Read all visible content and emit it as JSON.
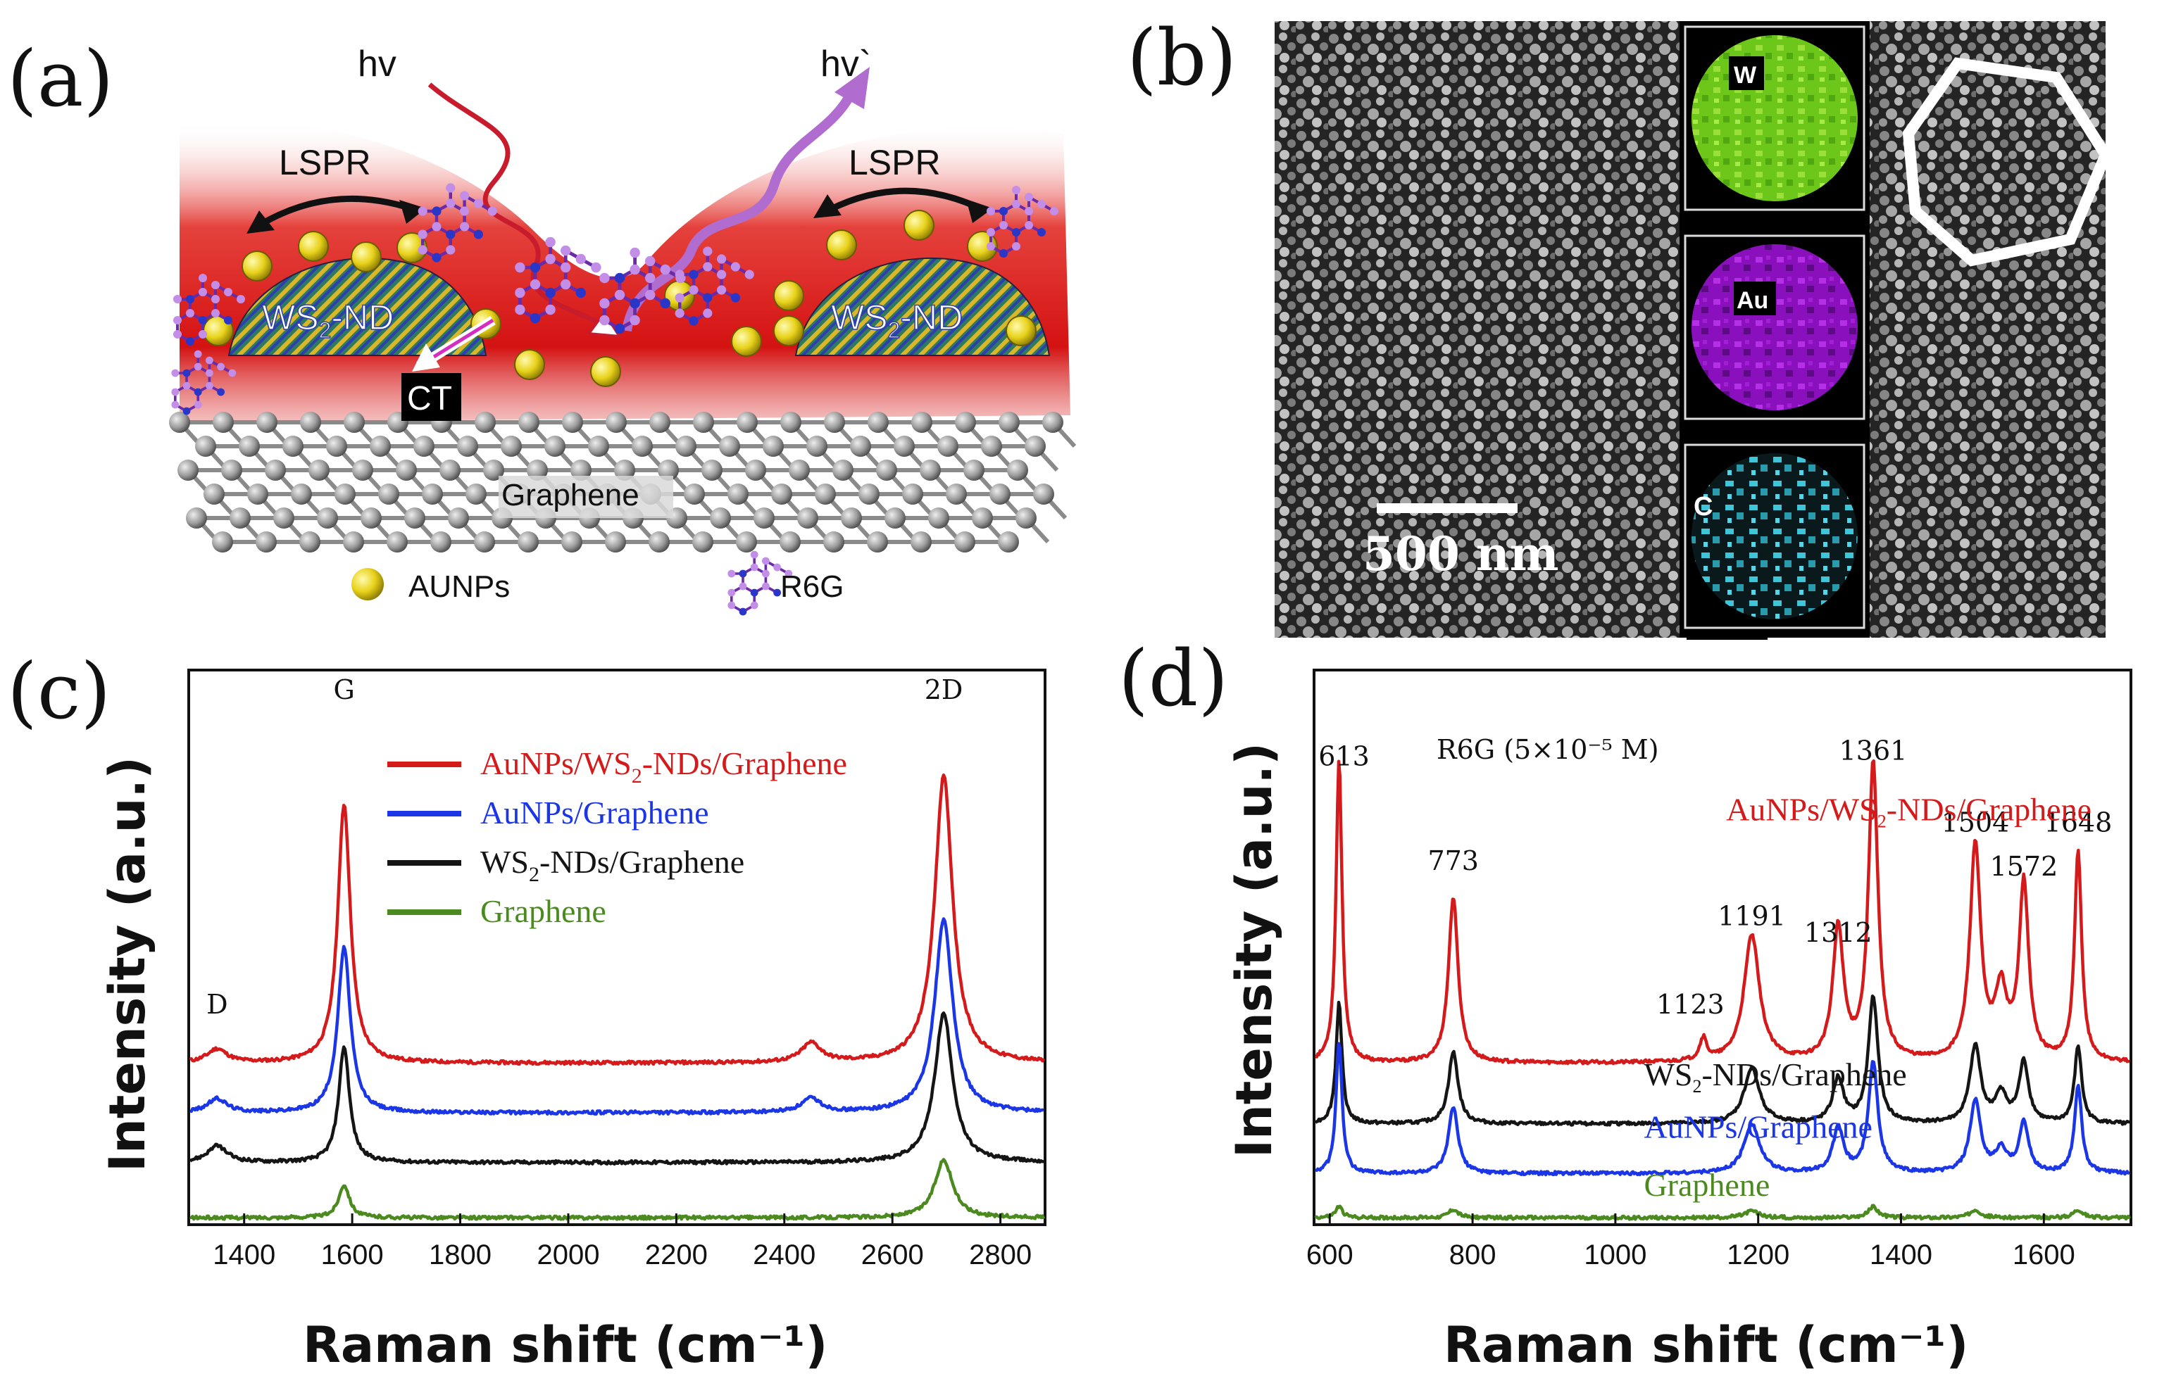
{
  "panels": {
    "a": {
      "label": "(a)",
      "hv_in": "hv",
      "hv_out": "hv`",
      "lspr": "LSPR",
      "nd": "WS",
      "nd_sub": "2",
      "nd_suffix": "-ND",
      "ct": "CT",
      "graphene": "Graphene",
      "legend_np": "AUNPs",
      "legend_dye": "R6G"
    },
    "b": {
      "label": "(b)",
      "scale_bar": "500 nm",
      "map_w": "W",
      "map_au": "Au",
      "map_c": "C"
    },
    "c": {
      "label": "(c)"
    },
    "d": {
      "label": "(d)"
    }
  },
  "colors": {
    "red": "#d41a1a",
    "blue": "#1b36e6",
    "black": "#151515",
    "green": "#4b8a1f",
    "lspr_red": "#dd1414",
    "w_green": "#84d81e",
    "au_purple": "#9a15c9",
    "c_cyan": "#3fc4d8",
    "gold": "#e8d21a"
  },
  "chart_data": [
    {
      "type": "line",
      "panel": "c",
      "xlabel": "Raman shift (cm⁻¹)",
      "ylabel": "Intensity (a.u.)",
      "xlim": [
        1300,
        2880
      ],
      "x_ticks": [
        "1400",
        "1600",
        "1800",
        "2000",
        "2200",
        "2400",
        "2600",
        "2800"
      ],
      "x_tick_values": [
        1400,
        1600,
        1800,
        2000,
        2200,
        2400,
        2600,
        2800
      ],
      "ylim": [
        0,
        1.0
      ],
      "peak_labels": [
        {
          "text": "D",
          "x": 1350,
          "y": 0.38
        },
        {
          "text": "G",
          "x": 1585,
          "y": 0.95
        },
        {
          "text": "2D",
          "x": 2695,
          "y": 0.95
        }
      ],
      "legend": [
        {
          "name": "AuNPs/WS",
          "sub": "2",
          "suffix": "-NDs/Graphene",
          "color": "#d41a1a"
        },
        {
          "name": "AuNPs/Graphene",
          "sub": "",
          "suffix": "",
          "color": "#1b36e6"
        },
        {
          "name": "WS",
          "sub": "2",
          "suffix": "-NDs/Graphene",
          "color": "#151515"
        },
        {
          "name": " Graphene",
          "sub": "",
          "suffix": "",
          "color": "#4b8a1f"
        }
      ],
      "series": [
        {
          "name": "AuNPs/WS2-NDs/Graphene",
          "color": "#d41a1a",
          "baseline": 0.29,
          "peaks": [
            [
              1350,
              0.025,
              22
            ],
            [
              1585,
              0.47,
              14
            ],
            [
              2450,
              0.035,
              22
            ],
            [
              2695,
              0.52,
              20
            ]
          ]
        },
        {
          "name": "AuNPs/Graphene",
          "color": "#1b36e6",
          "baseline": 0.2,
          "peaks": [
            [
              1350,
              0.025,
              22
            ],
            [
              1585,
              0.3,
              14
            ],
            [
              2450,
              0.025,
              22
            ],
            [
              2695,
              0.35,
              20
            ]
          ]
        },
        {
          "name": "WS2-NDs/Graphene",
          "color": "#151515",
          "baseline": 0.11,
          "peaks": [
            [
              1350,
              0.03,
              22
            ],
            [
              1585,
              0.21,
              12
            ],
            [
              2695,
              0.27,
              20
            ]
          ]
        },
        {
          "name": "Graphene",
          "color": "#4b8a1f",
          "baseline": 0.01,
          "peaks": [
            [
              1585,
              0.06,
              12
            ],
            [
              2695,
              0.105,
              20
            ]
          ]
        }
      ]
    },
    {
      "type": "line",
      "panel": "d",
      "xlabel": "Raman shift (cm⁻¹)",
      "ylabel": "Intensity (a.u.)",
      "xlim": [
        580,
        1720
      ],
      "x_ticks": [
        "600",
        "800",
        "1000",
        "1200",
        "1400",
        "1600"
      ],
      "x_tick_values": [
        600,
        800,
        1000,
        1200,
        1400,
        1600
      ],
      "ylim": [
        0,
        1.0
      ],
      "annotation": "R6G (5×10⁻⁵ M)",
      "peak_labels": [
        {
          "text": "613",
          "x": 620,
          "y": 0.83
        },
        {
          "text": "773",
          "x": 773,
          "y": 0.64
        },
        {
          "text": "1123",
          "x": 1105,
          "y": 0.38
        },
        {
          "text": "1191",
          "x": 1191,
          "y": 0.54
        },
        {
          "text": "1312",
          "x": 1312,
          "y": 0.51
        },
        {
          "text": "1361",
          "x": 1361,
          "y": 0.84
        },
        {
          "text": "1504",
          "x": 1504,
          "y": 0.71
        },
        {
          "text": "1572",
          "x": 1572,
          "y": 0.63
        },
        {
          "text": "1648",
          "x": 1648,
          "y": 0.71
        }
      ],
      "series_labels": [
        {
          "name": "AuNPs/WS",
          "sub": "2",
          "suffix": "-NDs/Graphene",
          "color": "#d41a1a",
          "x": 1155,
          "y": 0.73
        },
        {
          "name": "WS",
          "sub": "2",
          "suffix": "-NDs/Graphene",
          "color": "#151515",
          "x": 1040,
          "y": 0.25
        },
        {
          "name": "AuNPs/Graphene",
          "sub": "",
          "suffix": "",
          "color": "#1b36e6",
          "x": 1040,
          "y": 0.155
        },
        {
          "name": "Graphene",
          "sub": "",
          "suffix": "",
          "color": "#4b8a1f",
          "x": 1040,
          "y": 0.05
        }
      ],
      "series": [
        {
          "name": "AuNPs/WS2-NDs/Graphene",
          "color": "#d41a1a",
          "baseline": 0.29,
          "peaks": [
            [
              613,
              0.55,
              5
            ],
            [
              773,
              0.3,
              8
            ],
            [
              1123,
              0.04,
              6
            ],
            [
              1191,
              0.23,
              13
            ],
            [
              1312,
              0.24,
              9
            ],
            [
              1361,
              0.54,
              8
            ],
            [
              1504,
              0.39,
              9
            ],
            [
              1540,
              0.12,
              10
            ],
            [
              1572,
              0.32,
              8
            ],
            [
              1648,
              0.38,
              6
            ]
          ]
        },
        {
          "name": "WS2-NDs/Graphene",
          "color": "#151515",
          "baseline": 0.18,
          "peaks": [
            [
              613,
              0.22,
              5
            ],
            [
              773,
              0.13,
              8
            ],
            [
              1191,
              0.1,
              13
            ],
            [
              1312,
              0.08,
              9
            ],
            [
              1361,
              0.23,
              8
            ],
            [
              1504,
              0.14,
              9
            ],
            [
              1540,
              0.05,
              10
            ],
            [
              1572,
              0.11,
              8
            ],
            [
              1648,
              0.14,
              6
            ]
          ]
        },
        {
          "name": "AuNPs/Graphene",
          "color": "#1b36e6",
          "baseline": 0.09,
          "peaks": [
            [
              613,
              0.24,
              5
            ],
            [
              773,
              0.12,
              8
            ],
            [
              1191,
              0.09,
              13
            ],
            [
              1312,
              0.08,
              9
            ],
            [
              1361,
              0.2,
              8
            ],
            [
              1504,
              0.13,
              9
            ],
            [
              1540,
              0.04,
              10
            ],
            [
              1572,
              0.09,
              8
            ],
            [
              1648,
              0.16,
              6
            ]
          ]
        },
        {
          "name": "Graphene",
          "color": "#4b8a1f",
          "baseline": 0.01,
          "peaks": [
            [
              613,
              0.02,
              6
            ],
            [
              773,
              0.015,
              8
            ],
            [
              1191,
              0.012,
              12
            ],
            [
              1361,
              0.02,
              8
            ],
            [
              1504,
              0.015,
              9
            ],
            [
              1648,
              0.015,
              8
            ]
          ]
        }
      ]
    }
  ]
}
